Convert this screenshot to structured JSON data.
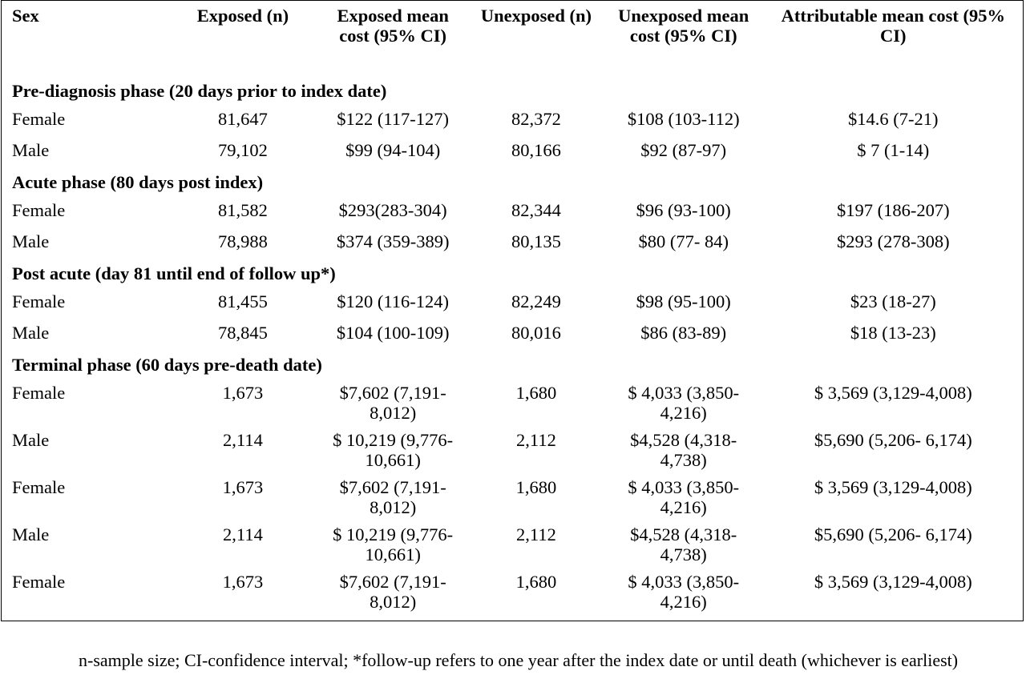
{
  "headers": [
    "Sex",
    "Exposed (n)",
    "Exposed mean cost (95% CI)",
    "Unexposed (n)",
    "Unexposed mean cost (95% CI)",
    "Attributable mean cost (95% CI)"
  ],
  "sections": [
    {
      "title": "Pre-diagnosis phase (20 days prior to index date)",
      "rows": [
        [
          "Female",
          "81,647",
          "$122 (117-127)",
          "82,372",
          "$108 (103-112)",
          "$14.6 (7-21)"
        ],
        [
          "Male",
          "79,102",
          "$99 (94-104)",
          "80,166",
          "$92 (87-97)",
          "$ 7 (1-14)"
        ]
      ]
    },
    {
      "title": "Acute phase (80 days post index)",
      "rows": [
        [
          "Female",
          "81,582",
          "$293(283-304)",
          "82,344",
          "$96 (93-100)",
          "$197 (186-207)"
        ],
        [
          "Male",
          "78,988",
          "$374 (359-389)",
          "80,135",
          "$80 (77- 84)",
          "$293 (278-308)"
        ]
      ]
    },
    {
      "title": "Post acute (day 81 until end of follow up*)",
      "rows": [
        [
          "Female",
          "81,455",
          "$120 (116-124)",
          "82,249",
          "$98 (95-100)",
          "$23 (18-27)"
        ],
        [
          "Male",
          "78,845",
          "$104 (100-109)",
          "80,016",
          "$86 (83-89)",
          "$18 (13-23)"
        ]
      ]
    },
    {
      "title": "Terminal phase (60 days pre-death date)",
      "rows": [
        [
          "Female",
          "1,673",
          "$7,602 (7,191-8,012)",
          "1,680",
          "$ 4,033 (3,850-4,216)",
          "$ 3,569 (3,129-4,008)"
        ],
        [
          "Male",
          "2,114",
          "$ 10,219 (9,776-10,661)",
          "2,112",
          "$4,528 (4,318-4,738)",
          "$5,690 (5,206- 6,174)"
        ],
        [
          "Female",
          "1,673",
          "$7,602 (7,191-8,012)",
          "1,680",
          "$ 4,033 (3,850-4,216)",
          "$ 3,569 (3,129-4,008)"
        ],
        [
          "Male",
          "2,114",
          "$ 10,219 (9,776-10,661)",
          "2,112",
          "$4,528 (4,318-4,738)",
          "$5,690 (5,206- 6,174)"
        ],
        [
          "Female",
          "1,673",
          "$7,602 (7,191-8,012)",
          "1,680",
          "$ 4,033 (3,850-4,216)",
          "$ 3,569 (3,129-4,008)"
        ]
      ]
    }
  ],
  "footnote": "n-sample size; CI-confidence interval; *follow-up refers to one year after the index date or until death (whichever is earliest)"
}
